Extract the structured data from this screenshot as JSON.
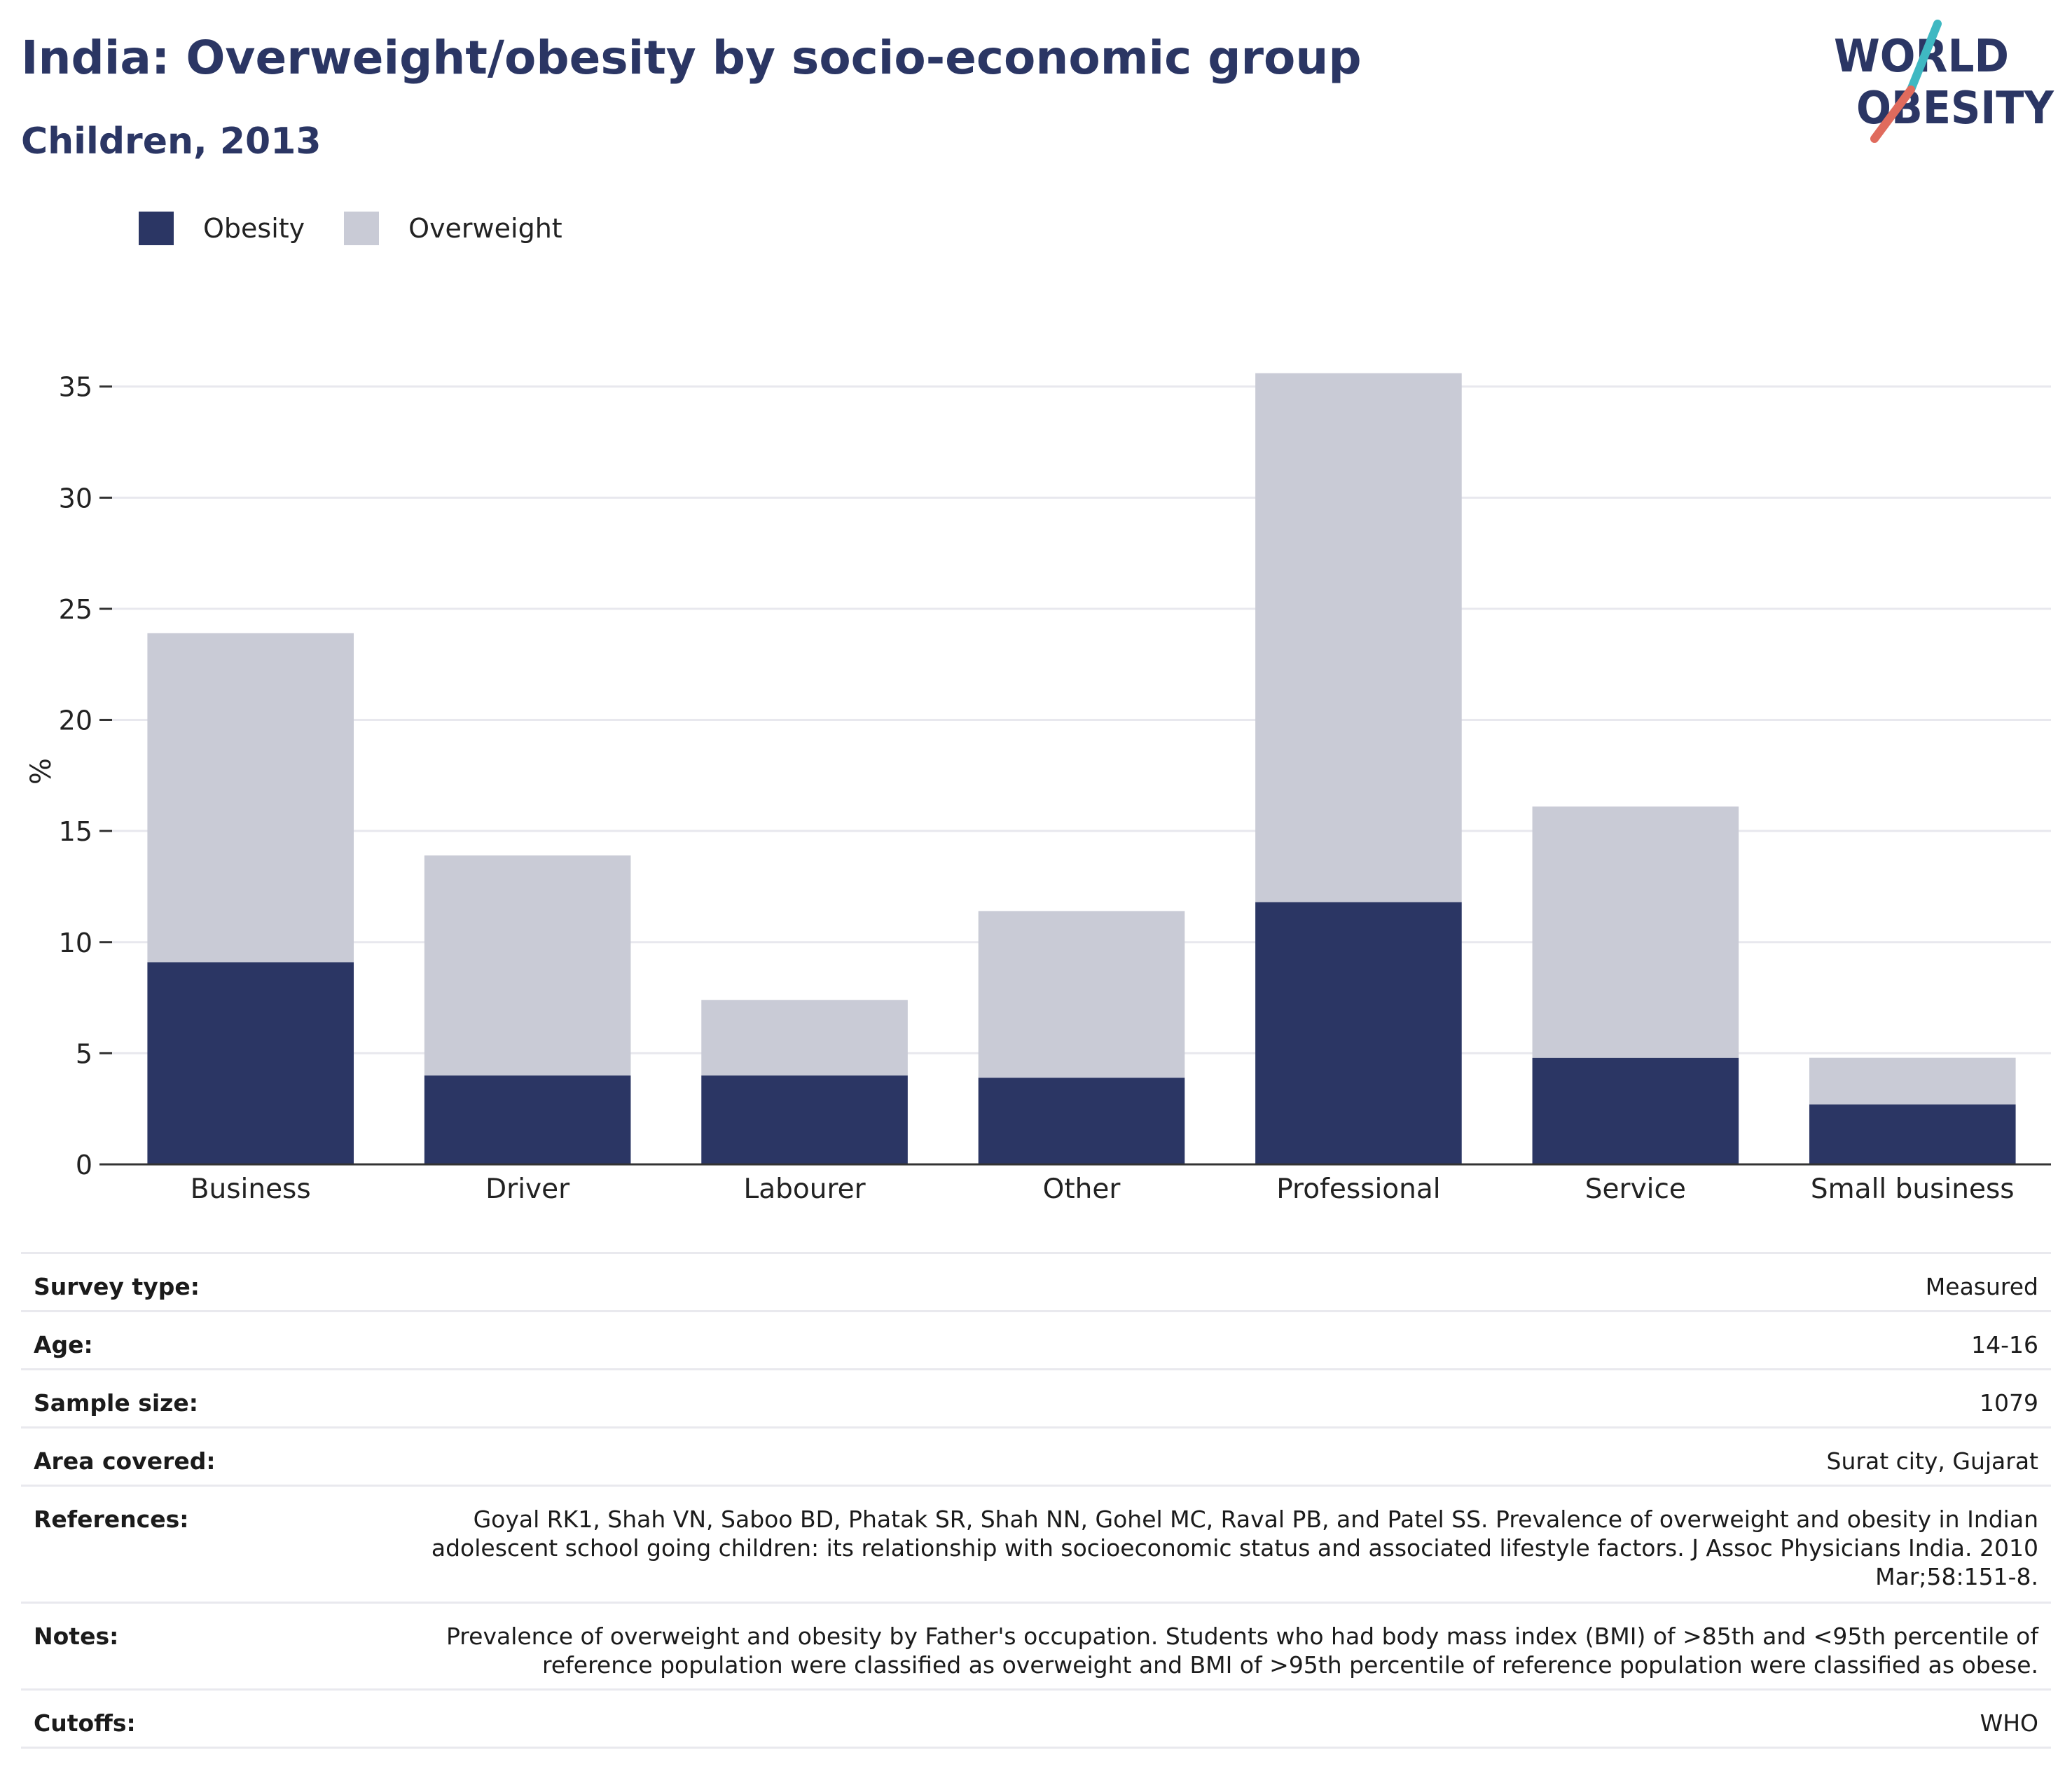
{
  "header": {
    "title": "India: Overweight/obesity by socio-economic group",
    "subtitle": "Children, 2013",
    "logo_line1": "WORLD",
    "logo_line2": "OBESITY"
  },
  "legend": {
    "items": [
      {
        "label": "Obesity",
        "color": "#2b3664"
      },
      {
        "label": "Overweight",
        "color": "#c9cbd6"
      }
    ]
  },
  "chart_data": {
    "type": "bar",
    "stacked": true,
    "title": "India: Overweight/obesity by socio-economic group",
    "subtitle": "Children, 2013",
    "xlabel": "",
    "ylabel": "%",
    "ylim": [
      0,
      36
    ],
    "yticks": [
      0,
      5,
      10,
      15,
      20,
      25,
      30,
      35
    ],
    "grid": true,
    "legend_position": "top-left",
    "categories": [
      "Business",
      "Driver",
      "Labourer",
      "Other",
      "Professional",
      "Service",
      "Small business"
    ],
    "series": [
      {
        "name": "Obesity",
        "color": "#2b3664",
        "values": [
          9.1,
          4.0,
          4.0,
          3.9,
          11.8,
          4.8,
          2.7
        ]
      },
      {
        "name": "Overweight",
        "color": "#c9cbd6",
        "values": [
          14.8,
          9.9,
          3.4,
          7.5,
          23.8,
          11.3,
          2.1
        ]
      }
    ]
  },
  "info": {
    "rows": [
      {
        "key": "Survey type:",
        "value": "Measured"
      },
      {
        "key": "Age:",
        "value": "14-16"
      },
      {
        "key": "Sample size:",
        "value": "1079"
      },
      {
        "key": "Area covered:",
        "value": "Surat city, Gujarat"
      },
      {
        "key": "References:",
        "value": "Goyal RK1, Shah VN, Saboo BD, Phatak SR, Shah NN, Gohel MC, Raval PB, and Patel SS. Prevalence of overweight and obesity in Indian adolescent school going children: its relationship with socioeconomic status and associated lifestyle factors. J Assoc Physicians India. 2010 Mar;58:151-8."
      },
      {
        "key": "Notes:",
        "value": "Prevalence of overweight and obesity by Father's occupation. Students who had body mass index (BMI) of >85th and <95th percentile of reference population were classified as overweight and BMI of >95th percentile of reference population were classified as obese."
      },
      {
        "key": "Cutoffs:",
        "value": "WHO"
      }
    ]
  },
  "colors": {
    "brand_navy": "#2b3664",
    "brand_teal": "#3fb8c2",
    "brand_coral": "#e06b5d",
    "gridline": "#e8e8ee",
    "axis": "#333333"
  }
}
